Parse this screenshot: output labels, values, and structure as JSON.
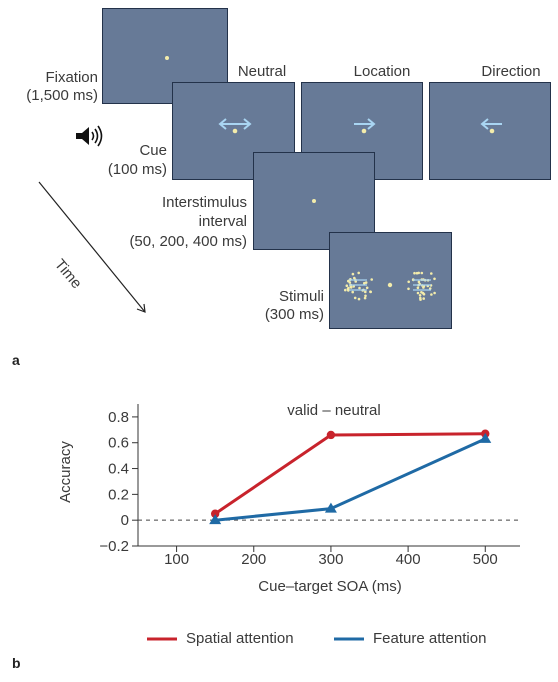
{
  "panel_a": {
    "letter": "a",
    "fixation": {
      "label": "Fixation",
      "duration": "(1,500 ms)"
    },
    "cue": {
      "label": "Cue",
      "duration": "(100 ms)"
    },
    "cue_types": [
      "Neutral",
      "Location",
      "Direction"
    ],
    "isi": {
      "label_line1": "Interstimulus",
      "label_line2": "interval",
      "duration": "(50, 200, 400 ms)"
    },
    "stimuli": {
      "label": "Stimuli",
      "duration": "(300 ms)"
    },
    "time_label": "Time",
    "colors": {
      "screen": "#677a97",
      "fixation_dot": "#f3ecab",
      "cue_arrow": "#a9d5f2"
    },
    "icons": [
      "speaker-icon",
      "neutral-cue-double-arrow-icon",
      "location-cue-arrow-icon",
      "direction-cue-arrow-icon"
    ]
  },
  "panel_b": {
    "letter": "b",
    "chart_data": {
      "type": "line",
      "title": "valid – neutral",
      "xlabel": "Cue–target SOA (ms)",
      "ylabel": "Accuracy",
      "x_ticks": [
        "100",
        "200",
        "300",
        "400",
        "500"
      ],
      "y_ticks": [
        "0.8",
        "0.6",
        "0.4",
        "0.2",
        "0",
        "−0.2"
      ],
      "xlim": [
        50,
        545
      ],
      "ylim": [
        -0.2,
        0.9
      ],
      "reference_line": 0,
      "series": [
        {
          "name": "Spatial attention",
          "color": "#c8232c",
          "marker": "circle",
          "x": [
            150,
            300,
            500
          ],
          "values": [
            0.05,
            0.66,
            0.67
          ]
        },
        {
          "name": "Feature attention",
          "color": "#1f6aa5",
          "marker": "triangle",
          "x": [
            150,
            300,
            500
          ],
          "values": [
            0.0,
            0.09,
            0.63
          ]
        }
      ],
      "legend_position": "bottom"
    }
  }
}
